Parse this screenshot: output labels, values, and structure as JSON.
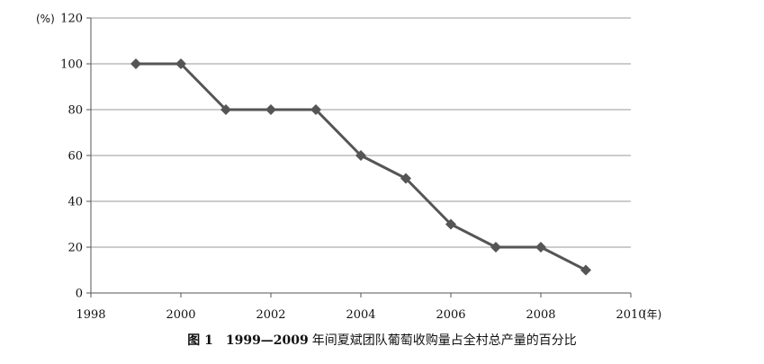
{
  "chart_data": {
    "type": "line",
    "x": [
      1999,
      2000,
      2001,
      2002,
      2003,
      2004,
      2005,
      2006,
      2007,
      2008,
      2009
    ],
    "series": [
      {
        "values": [
          100,
          100,
          80,
          80,
          80,
          60,
          50,
          30,
          20,
          20,
          10
        ]
      }
    ],
    "xlim": [
      1998,
      2010
    ],
    "ylim": [
      0,
      120
    ],
    "xticks": [
      1998,
      2000,
      2002,
      2004,
      2006,
      2008,
      2010
    ],
    "yticks": [
      0,
      20,
      40,
      60,
      80,
      100,
      120
    ],
    "ylabel": "(%)",
    "xlabel": "(年)",
    "grid": "horizontal",
    "line_color": "#555555",
    "marker": "diamond"
  },
  "caption": {
    "figure_number": "图 1",
    "range": "1999—2009",
    "text": "年间夏斌团队葡萄收购量占全村总产量的百分比"
  }
}
